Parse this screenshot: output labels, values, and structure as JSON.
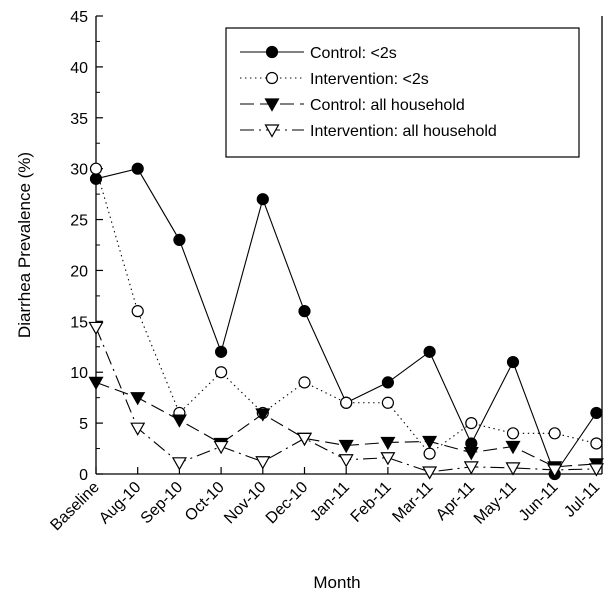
{
  "chart_data": {
    "type": "line",
    "xlabel": "Month",
    "ylabel": "Diarrhea Prevalence (%)",
    "ylim": [
      0,
      45
    ],
    "yticks": [
      "0",
      "5",
      "10",
      "15",
      "20",
      "25",
      "30",
      "35",
      "40",
      "45"
    ],
    "categories": [
      "Baseline",
      "Aug-10",
      "Sep-10",
      "Oct-10",
      "Nov-10",
      "Dec-10",
      "Jan-11",
      "Feb-11",
      "Mar-11",
      "Apr-11",
      "May-11",
      "Jun-11",
      "Jul-11"
    ],
    "legend_position": "top-right",
    "grid": false,
    "series": [
      {
        "name": "Control: <2s",
        "marker": "filled-circle",
        "line": "solid",
        "values": [
          29,
          30,
          23,
          12,
          27,
          16,
          7,
          9,
          12,
          3,
          11,
          0,
          6
        ]
      },
      {
        "name": "Intervention: <2s",
        "marker": "open-circle",
        "line": "dotted",
        "values": [
          30,
          16,
          6,
          10,
          6,
          9,
          7,
          7,
          2,
          5,
          4,
          4,
          3
        ]
      },
      {
        "name": "Control: all household",
        "marker": "filled-triangle-down",
        "line": "dashed",
        "values": [
          9,
          7.5,
          5.3,
          3,
          5.9,
          3.5,
          2.8,
          3.1,
          3.2,
          2.1,
          2.7,
          0.7,
          1
        ]
      },
      {
        "name": "Intervention: all household",
        "marker": "open-triangle-down",
        "line": "dash-dot",
        "values": [
          14.4,
          4.5,
          1.1,
          2.7,
          1.2,
          3.5,
          1.4,
          1.6,
          0.2,
          0.7,
          0.6,
          0.4,
          0.5
        ]
      }
    ]
  }
}
